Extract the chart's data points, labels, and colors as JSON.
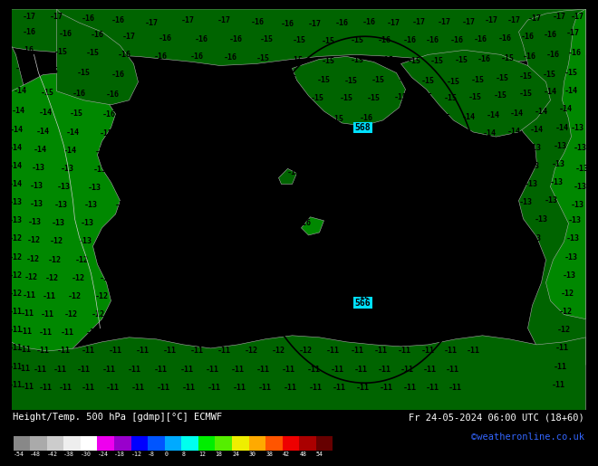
{
  "title_left": "Height/Temp. 500 hPa [gdmp][°C] ECMWF",
  "title_right": "Fr 24-05-2024 06:00 UTC (18+60)",
  "credit": "©weatheronline.co.uk",
  "ocean_color": "#00e0ff",
  "land_color_dark": "#006400",
  "land_color_med": "#008800",
  "land_color_light": "#00aa44",
  "bottom_bar_color": "#000000",
  "fig_width": 6.34,
  "fig_height": 4.9,
  "colorbar_colors": [
    "#888888",
    "#aaaaaa",
    "#cccccc",
    "#eeeeee",
    "#ffffff",
    "#ee00ee",
    "#9900cc",
    "#0000ff",
    "#0055ff",
    "#00aaff",
    "#00ffee",
    "#00ee00",
    "#55ee00",
    "#eeee00",
    "#ffaa00",
    "#ff5500",
    "#ee0000",
    "#aa0000",
    "#660000"
  ],
  "colorbar_labels": [
    "-54",
    "-48",
    "-42",
    "-38",
    "-30",
    "-24",
    "-18",
    "-12",
    "-8",
    "0",
    "8",
    "12",
    "18",
    "24",
    "30",
    "38",
    "42",
    "48",
    "54"
  ],
  "contour_line_color": "#000000",
  "label_color": "#000000",
  "contour_label_568_color": "#000000",
  "credit_color": "#3366ff"
}
